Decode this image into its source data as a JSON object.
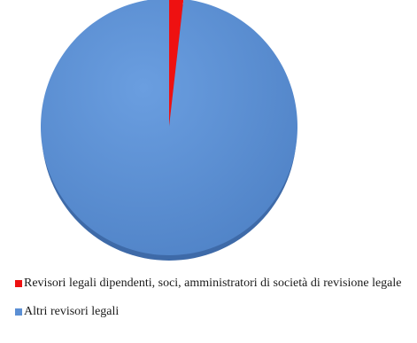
{
  "chart_data": {
    "type": "pie",
    "slices": [
      {
        "label": "Revisori legali dipendenti, soci, amministratori di società di revisione legale",
        "value": 1.8,
        "color": "#ee1111"
      },
      {
        "label": "Altri revisori legali",
        "value": 98.2,
        "color": "#5b8fd4"
      }
    ],
    "legend": {
      "position": "bottom",
      "items": [
        {
          "label": "Revisori legali dipendenti, soci, amministratori di società di revisione legale",
          "color": "#ee1111"
        },
        {
          "label": "Altri revisori legali",
          "color": "#5b8fd4"
        }
      ]
    }
  }
}
